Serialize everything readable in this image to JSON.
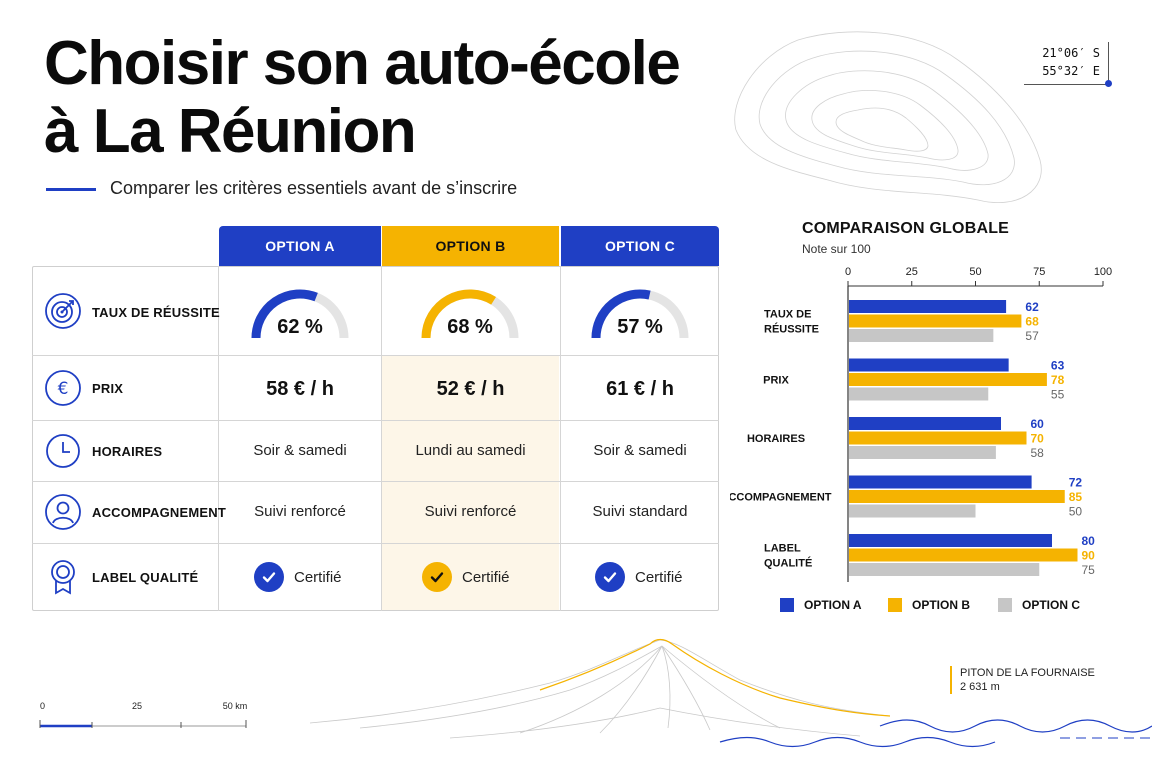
{
  "header": {
    "title_line1": "Choisir son auto-école",
    "title_line2": "à La Réunion",
    "subtitle": "Comparer les critères essentiels avant de s’inscrire"
  },
  "coordinates": {
    "lat": "21°06′ S",
    "lon": "55°32′ E"
  },
  "colors": {
    "option_a": "#1f3fc4",
    "option_b": "#f5b301",
    "option_c": "#c6c6c6",
    "accent": "#1f3fc4"
  },
  "table": {
    "columns": [
      "OPTION A",
      "OPTION B",
      "OPTION C"
    ],
    "rows": [
      {
        "label": "TAUX DE RÉUSSITE",
        "icon": "target-icon",
        "cells": [
          "62 %",
          "68 %",
          "57 %"
        ],
        "levels": [
          0.62,
          0.68,
          0.57
        ]
      },
      {
        "label": "PRIX",
        "icon": "euro-icon",
        "cells": [
          "58 € / h",
          "52 € / h",
          "61 € / h"
        ]
      },
      {
        "label": "HORAIRES",
        "icon": "clock-icon",
        "cells": [
          "Soir & samedi",
          "Lundi au samedi",
          "Soir & samedi"
        ]
      },
      {
        "label": "ACCOMPAGNEMENT",
        "icon": "user-icon",
        "cells": [
          "Suivi renforcé",
          "Suivi renforcé",
          "Suivi standard"
        ]
      },
      {
        "label": "LABEL QUALITÉ",
        "icon": "award-icon",
        "cells": [
          "Certifié",
          "Certifié",
          "Certifié"
        ]
      }
    ]
  },
  "chart_data": {
    "type": "bar",
    "orientation": "horizontal",
    "title": "COMPARAISON GLOBALE",
    "subtitle": "Note sur 100",
    "categories": [
      "TAUX DE RÉUSSITE",
      "PRIX",
      "HORAIRES",
      "ACCOMPAGNEMENT",
      "LABEL QUALITÉ"
    ],
    "x_ticks": [
      0,
      25,
      50,
      75,
      100
    ],
    "xlim": [
      0,
      100
    ],
    "series": [
      {
        "name": "OPTION A",
        "color": "#1f3fc4",
        "values": [
          62,
          63,
          60,
          72,
          80
        ]
      },
      {
        "name": "OPTION B",
        "color": "#f5b301",
        "values": [
          68,
          78,
          70,
          85,
          90
        ]
      },
      {
        "name": "OPTION C",
        "color": "#c6c6c6",
        "values": [
          57,
          55,
          58,
          50,
          75
        ]
      }
    ],
    "legend_position": "bottom",
    "grid": false
  },
  "scale_bar": {
    "labels": [
      "0",
      "25",
      "50 km"
    ]
  },
  "peak": {
    "name": "PITON DE LA FOURNAISE",
    "altitude": "2 631 m"
  }
}
